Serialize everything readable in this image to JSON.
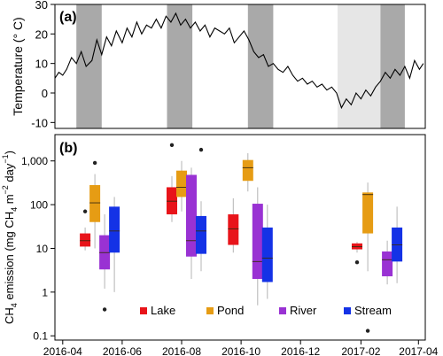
{
  "chart_data": [
    {
      "panel_label": "(a)",
      "type": "line",
      "ylabel": "Temperature (° C)",
      "ylim": [
        -12,
        30
      ],
      "yticks": [
        "-10",
        "0",
        "10",
        "20",
        "30"
      ],
      "x_start": "2016-03-24",
      "x_end": "2017-04-08",
      "shaded_periods": [
        {
          "start": "2016-04-15",
          "end": "2016-05-11",
          "shade": "dark"
        },
        {
          "start": "2016-07-17",
          "end": "2016-08-12",
          "shade": "dark"
        },
        {
          "start": "2016-10-08",
          "end": "2016-11-03",
          "shade": "dark"
        },
        {
          "start": "2017-01-08",
          "end": "2017-02-21",
          "shade": "light"
        },
        {
          "start": "2017-02-21",
          "end": "2017-03-18",
          "shade": "dark"
        }
      ],
      "series": [
        {
          "color": "#000000",
          "points": [
            [
              "2016-03-24",
              5
            ],
            [
              "2016-03-28",
              7
            ],
            [
              "2016-04-01",
              6
            ],
            [
              "2016-04-05",
              8
            ],
            [
              "2016-04-10",
              12
            ],
            [
              "2016-04-15",
              10
            ],
            [
              "2016-04-20",
              14
            ],
            [
              "2016-04-25",
              9
            ],
            [
              "2016-05-01",
              11
            ],
            [
              "2016-05-06",
              18
            ],
            [
              "2016-05-11",
              13
            ],
            [
              "2016-05-16",
              19
            ],
            [
              "2016-05-21",
              16
            ],
            [
              "2016-05-26",
              21
            ],
            [
              "2016-06-01",
              17
            ],
            [
              "2016-06-06",
              22
            ],
            [
              "2016-06-11",
              19
            ],
            [
              "2016-06-16",
              24
            ],
            [
              "2016-06-21",
              20
            ],
            [
              "2016-06-26",
              23
            ],
            [
              "2016-07-01",
              22
            ],
            [
              "2016-07-06",
              25
            ],
            [
              "2016-07-11",
              22
            ],
            [
              "2016-07-16",
              26
            ],
            [
              "2016-07-21",
              24
            ],
            [
              "2016-07-26",
              27
            ],
            [
              "2016-07-31",
              23
            ],
            [
              "2016-08-05",
              25
            ],
            [
              "2016-08-10",
              22
            ],
            [
              "2016-08-15",
              24
            ],
            [
              "2016-08-20",
              21
            ],
            [
              "2016-08-25",
              23
            ],
            [
              "2016-08-30",
              19
            ],
            [
              "2016-09-04",
              22
            ],
            [
              "2016-09-09",
              21
            ],
            [
              "2016-09-14",
              20
            ],
            [
              "2016-09-19",
              22
            ],
            [
              "2016-09-24",
              17
            ],
            [
              "2016-09-29",
              19
            ],
            [
              "2016-10-04",
              21
            ],
            [
              "2016-10-09",
              18
            ],
            [
              "2016-10-14",
              14
            ],
            [
              "2016-10-19",
              12
            ],
            [
              "2016-10-24",
              13
            ],
            [
              "2016-10-29",
              9
            ],
            [
              "2016-11-03",
              10
            ],
            [
              "2016-11-08",
              8
            ],
            [
              "2016-11-13",
              7
            ],
            [
              "2016-11-18",
              9
            ],
            [
              "2016-11-23",
              6
            ],
            [
              "2016-11-28",
              4
            ],
            [
              "2016-12-03",
              5
            ],
            [
              "2016-12-08",
              3
            ],
            [
              "2016-12-13",
              4
            ],
            [
              "2016-12-18",
              2
            ],
            [
              "2016-12-23",
              3
            ],
            [
              "2016-12-28",
              1
            ],
            [
              "2017-01-02",
              2
            ],
            [
              "2017-01-07",
              0
            ],
            [
              "2017-01-12",
              -5
            ],
            [
              "2017-01-17",
              -2
            ],
            [
              "2017-01-22",
              -4
            ],
            [
              "2017-01-27",
              0
            ],
            [
              "2017-02-01",
              -2
            ],
            [
              "2017-02-06",
              1
            ],
            [
              "2017-02-11",
              -1
            ],
            [
              "2017-02-16",
              2
            ],
            [
              "2017-02-21",
              4
            ],
            [
              "2017-02-26",
              7
            ],
            [
              "2017-03-03",
              5
            ],
            [
              "2017-03-08",
              8
            ],
            [
              "2017-03-13",
              6
            ],
            [
              "2017-03-18",
              9
            ],
            [
              "2017-03-23",
              5
            ],
            [
              "2017-03-28",
              11
            ],
            [
              "2017-04-02",
              8
            ],
            [
              "2017-04-06",
              10
            ]
          ]
        }
      ]
    },
    {
      "panel_label": "(b)",
      "type": "box",
      "ylabel": "CH4 emission (mg CH4 m-2 day-1)",
      "ylabel_parts": {
        "a": "CH",
        "b": "4",
        "c": " emission (mg CH",
        "d": "4",
        "e": " m",
        "f": "−2",
        "g": " day",
        "h": "−1",
        "i": ")"
      },
      "yscale": "log",
      "ylim": [
        0.08,
        4000
      ],
      "yticks": [
        {
          "value": 0.1,
          "label": "0.1"
        },
        {
          "value": 1,
          "label": "1"
        },
        {
          "value": 10,
          "label": "10"
        },
        {
          "value": 100,
          "label": "100"
        },
        {
          "value": 1000,
          "label": "1,000"
        }
      ],
      "x_start": "2016-03-24",
      "x_end": "2017-04-08",
      "xticks": [
        "2016-04",
        "2016-06",
        "2016-08",
        "2016-10",
        "2016-12",
        "2017-02",
        "2017-04"
      ],
      "legend": [
        {
          "name": "Lake",
          "color": "#e8141a"
        },
        {
          "name": "Pond",
          "color": "#e69c14"
        },
        {
          "name": "River",
          "color": "#9932d3"
        },
        {
          "name": "Stream",
          "color": "#1432e6"
        }
      ],
      "boxes": [
        {
          "group": "Lake",
          "date": "2016-04-24",
          "color": "#e8141a",
          "whisker_low": 9,
          "q1": 11,
          "median": 15,
          "q3": 22,
          "whisker_high": 30,
          "outliers": [
            70
          ]
        },
        {
          "group": "Pond",
          "date": "2016-05-04",
          "color": "#e69c14",
          "whisker_low": 10,
          "q1": 40,
          "median": 110,
          "q3": 280,
          "whisker_high": 500,
          "outliers": [
            900
          ]
        },
        {
          "group": "River",
          "date": "2016-05-14",
          "color": "#9932d3",
          "whisker_low": 1.2,
          "q1": 3.3,
          "median": 8,
          "q3": 20,
          "whisker_high": 60,
          "outliers": [
            0.4
          ]
        },
        {
          "group": "Stream",
          "date": "2016-05-24",
          "color": "#1432e6",
          "whisker_low": 1,
          "q1": 8,
          "median": 25,
          "q3": 90,
          "whisker_high": 150,
          "outliers": []
        },
        {
          "group": "Lake",
          "date": "2016-07-22",
          "color": "#e8141a",
          "whisker_low": 40,
          "q1": 60,
          "median": 120,
          "q3": 250,
          "whisker_high": 450,
          "outliers": [
            2300
          ]
        },
        {
          "group": "Pond",
          "date": "2016-08-01",
          "color": "#e69c14",
          "whisker_low": 70,
          "q1": 150,
          "median": 250,
          "q3": 600,
          "whisker_high": 1000,
          "outliers": []
        },
        {
          "group": "River",
          "date": "2016-08-11",
          "color": "#9932d3",
          "whisker_low": 2,
          "q1": 6.5,
          "median": 15,
          "q3": 480,
          "whisker_high": 700,
          "outliers": []
        },
        {
          "group": "Stream",
          "date": "2016-08-21",
          "color": "#1432e6",
          "whisker_low": 3,
          "q1": 7.5,
          "median": 25,
          "q3": 55,
          "whisker_high": 120,
          "outliers": [
            1800
          ]
        },
        {
          "group": "Lake",
          "date": "2016-09-23",
          "color": "#e8141a",
          "whisker_low": 8,
          "q1": 12,
          "median": 28,
          "q3": 60,
          "whisker_high": 140,
          "outliers": []
        },
        {
          "group": "Pond",
          "date": "2016-10-08",
          "color": "#e69c14",
          "whisker_low": 200,
          "q1": 350,
          "median": 700,
          "q3": 1050,
          "whisker_high": 1500,
          "outliers": []
        },
        {
          "group": "River",
          "date": "2016-10-18",
          "color": "#9932d3",
          "whisker_low": 0.5,
          "q1": 2,
          "median": 5,
          "q3": 105,
          "whisker_high": 250,
          "outliers": []
        },
        {
          "group": "Stream",
          "date": "2016-10-28",
          "color": "#1432e6",
          "whisker_low": 0.7,
          "q1": 1.7,
          "median": 6,
          "q3": 30,
          "whisker_high": 100,
          "outliers": []
        },
        {
          "group": "Lake",
          "date": "2017-01-28",
          "color": "#e8141a",
          "whisker_low": 8,
          "q1": 9.5,
          "median": 11,
          "q3": 13,
          "whisker_high": 14,
          "outliers": [
            4.8
          ]
        },
        {
          "group": "Pond",
          "date": "2017-02-08",
          "color": "#e69c14",
          "whisker_low": 3,
          "q1": 22,
          "median": 170,
          "q3": 190,
          "whisker_high": 320,
          "outliers": [
            0.13
          ]
        },
        {
          "group": "River",
          "date": "2017-02-28",
          "color": "#9932d3",
          "whisker_low": 1.5,
          "q1": 2.3,
          "median": 5.5,
          "q3": 8.5,
          "whisker_high": 15,
          "outliers": []
        },
        {
          "group": "Stream",
          "date": "2017-03-10",
          "color": "#1432e6",
          "whisker_low": 1.6,
          "q1": 5,
          "median": 12,
          "q3": 30,
          "whisker_high": 90,
          "outliers": []
        }
      ]
    }
  ]
}
